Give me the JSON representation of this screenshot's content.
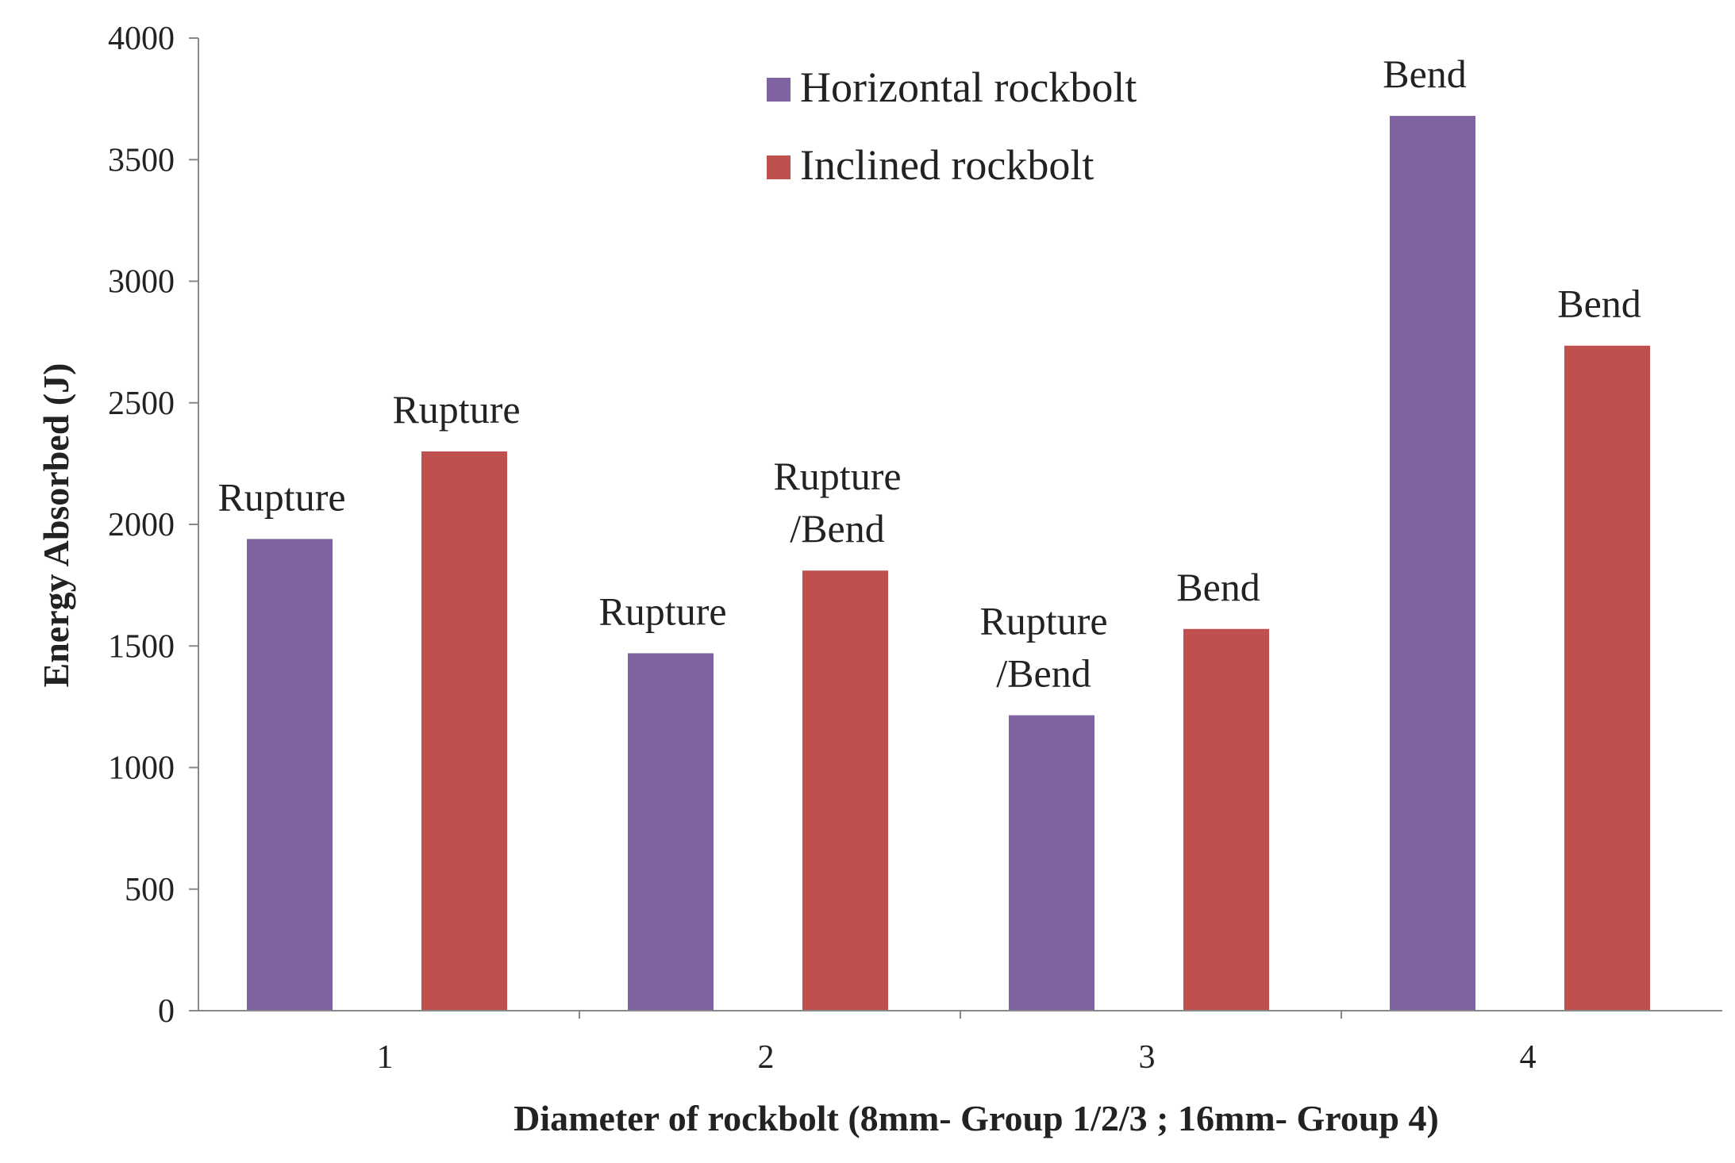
{
  "chart_data": {
    "type": "bar",
    "title": "",
    "xlabel": "Diameter of rockbolt (8mm- Group 1/2/3 ; 16mm- Group 4)",
    "ylabel": "Energy Absorbed (J)",
    "categories": [
      "1",
      "2",
      "3",
      "4"
    ],
    "ylim": [
      0,
      4000
    ],
    "yticks": [
      "0",
      "500",
      "1000",
      "1500",
      "2000",
      "2500",
      "3000",
      "3500",
      "4000"
    ],
    "grid": false,
    "legend_position": "top-center",
    "series": [
      {
        "name": "Horizontal rockbolt",
        "color": "#8064a2",
        "values": [
          1940,
          1470,
          1215,
          3680
        ],
        "labels": [
          [
            "Rupture"
          ],
          [
            "Rupture"
          ],
          [
            "Rupture",
            "/Bend"
          ],
          [
            "Bend"
          ]
        ]
      },
      {
        "name": "Inclined rockbolt",
        "color": "#c0504d",
        "values": [
          2300,
          1810,
          1570,
          2735
        ],
        "labels": [
          [
            "Rupture"
          ],
          [
            "Rupture",
            "/Bend"
          ],
          [
            "Bend"
          ],
          [
            "Bend"
          ]
        ]
      }
    ]
  }
}
